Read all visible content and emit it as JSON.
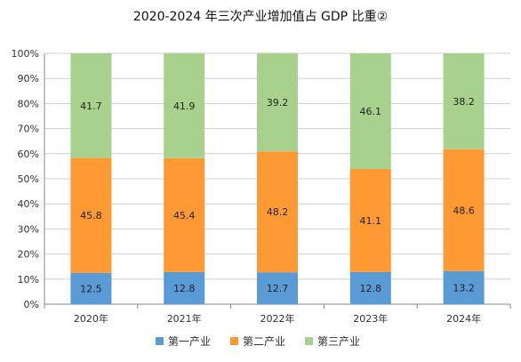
{
  "chart_data": {
    "type": "bar",
    "stacked": true,
    "title": "2020-2024 年三次产业增加值占 GDP 比重②",
    "categories": [
      "2020年",
      "2021年",
      "2022年",
      "2023年",
      "2024年"
    ],
    "series": [
      {
        "name": "第一产业",
        "color": "#5b9bd5",
        "values": [
          12.5,
          12.8,
          12.7,
          12.8,
          13.2
        ]
      },
      {
        "name": "第二产业",
        "color": "#ff9933",
        "values": [
          45.8,
          45.4,
          48.2,
          41.1,
          48.6
        ]
      },
      {
        "name": "第三产业",
        "color": "#a9d18e",
        "values": [
          41.7,
          41.9,
          39.2,
          46.1,
          38.2
        ]
      }
    ],
    "value_labels": [
      [
        "12.5",
        "12.8",
        "12.7",
        "12.8",
        "13.2"
      ],
      [
        "45.8",
        "45.4",
        "48.2",
        "41.1",
        "48.6"
      ],
      [
        "41.7",
        "41.9",
        "39.2",
        "46.1",
        "38.2"
      ]
    ],
    "ylim": [
      0,
      100
    ],
    "yticks": [
      "0%",
      "10%",
      "20%",
      "30%",
      "40%",
      "50%",
      "60%",
      "70%",
      "80%",
      "90%",
      "100%"
    ],
    "grid": true,
    "legend_position": "bottom"
  }
}
